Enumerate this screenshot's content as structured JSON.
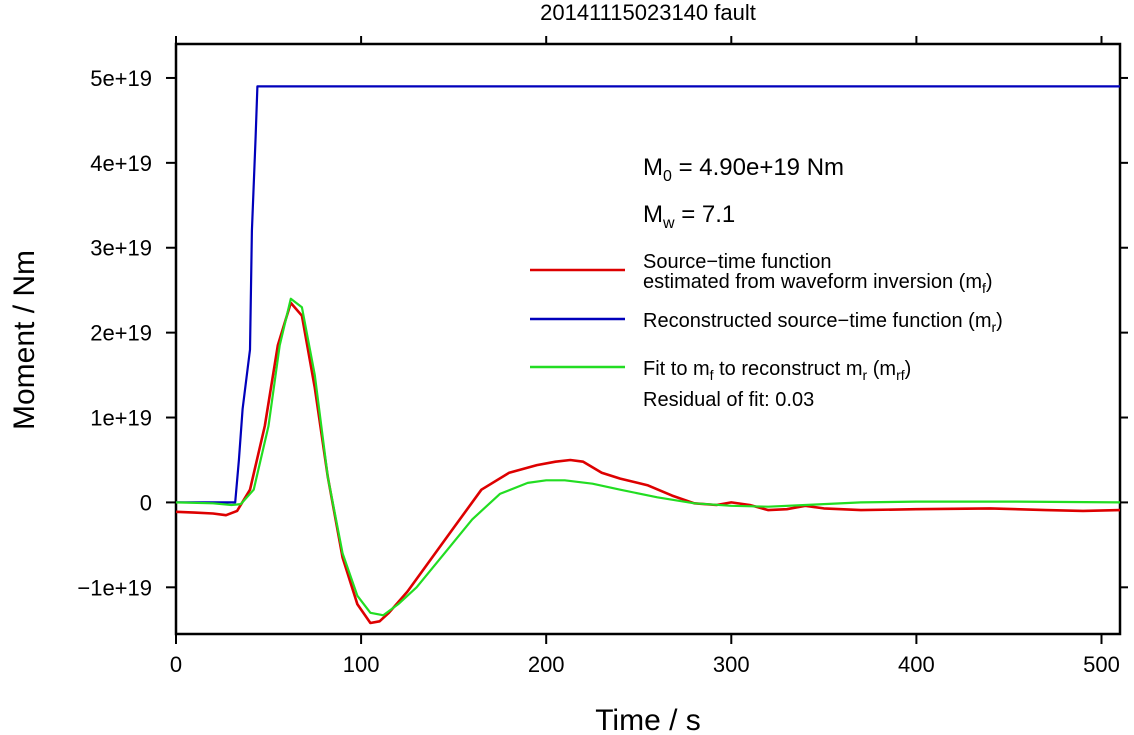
{
  "chart_data": {
    "type": "line",
    "title": "20141115023140 fault",
    "xlabel": "Time / s",
    "ylabel": "Moment / Nm",
    "xlim": [
      0,
      510
    ],
    "ylim": [
      -1.55e+19,
      5.4e+19
    ],
    "x_ticks": [
      0,
      100,
      200,
      300,
      400,
      500
    ],
    "x_tick_labels": [
      "0",
      "100",
      "200",
      "300",
      "400",
      "500"
    ],
    "y_ticks": [
      -1e+19,
      0,
      1e+19,
      2e+19,
      3e+19,
      4e+19,
      5e+19
    ],
    "y_tick_labels": [
      "−1e+19",
      "0",
      "1e+19",
      "2e+19",
      "3e+19",
      "4e+19",
      "5e+19"
    ],
    "grid": false,
    "legend_placement": "right",
    "annotations": {
      "m0": {
        "base": "M",
        "sub": "0",
        "rest": " = 4.90e+19 Nm"
      },
      "mw": {
        "base": "M",
        "sub": "w",
        "rest": " = 7.1"
      },
      "residual": "Residual of fit: 0.03"
    },
    "legend": [
      {
        "color": "#dd0000",
        "parts": [
          {
            "line1": "Source−time function"
          },
          {
            "t": "estimated from waveform inversion (m"
          },
          {
            "sub": "f"
          },
          {
            "t": ")"
          }
        ]
      },
      {
        "color": "#0000bb",
        "parts": [
          {
            "t": "Reconstructed source−time function (m"
          },
          {
            "sub": "r"
          },
          {
            "t": ")"
          }
        ]
      },
      {
        "color": "#22dd22",
        "parts": [
          {
            "t": "Fit to m"
          },
          {
            "sub": "f"
          },
          {
            "t": " to reconstruct m"
          },
          {
            "sub": "r"
          },
          {
            "t": " (m"
          },
          {
            "sub": "rf"
          },
          {
            "t": ")"
          }
        ]
      }
    ],
    "series": [
      {
        "color": "#dd0000",
        "x": [
          0,
          10,
          20,
          27,
          33,
          40,
          48,
          55,
          62,
          68,
          75,
          82,
          90,
          98,
          105,
          110,
          115,
          125,
          135,
          150,
          165,
          180,
          195,
          205,
          213,
          220,
          230,
          240,
          255,
          268,
          280,
          292,
          300,
          310,
          320,
          330,
          340,
          350,
          370,
          400,
          440,
          470,
          490,
          510
        ],
        "y": [
          -1.1e+18,
          -1.2e+18,
          -1.3e+18,
          -1.5e+18,
          -1e+18,
          1.5e+18,
          9e+18,
          1.85e+19,
          2.35e+19,
          2.2e+19,
          1.35e+19,
          3e+18,
          -6.5e+18,
          -1.2e+19,
          -1.42e+19,
          -1.4e+19,
          -1.3e+19,
          -1.05e+19,
          -7.5e+18,
          -3e+18,
          1.5e+18,
          3.5e+18,
          4.4e+18,
          4.8e+18,
          5e+18,
          4.8e+18,
          3.5e+18,
          2.8e+18,
          2e+18,
          8e+17,
          -1e+17,
          -3e+17,
          0,
          -3e+17,
          -9e+17,
          -8e+17,
          -4e+17,
          -7e+17,
          -9e+17,
          -8e+17,
          -7e+17,
          -9e+17,
          -1e+18,
          -9e+17
        ]
      },
      {
        "color": "#0000bb",
        "x": [
          0,
          32,
          34,
          36,
          40,
          41,
          43,
          44,
          510
        ],
        "y": [
          0,
          0,
          5e+18,
          1.1e+19,
          1.8e+19,
          3.2e+19,
          4.3e+19,
          4.9e+19,
          4.9e+19
        ]
      },
      {
        "color": "#22dd22",
        "x": [
          0,
          20,
          30,
          35,
          42,
          50,
          56,
          62,
          68,
          75,
          82,
          90,
          98,
          105,
          112,
          120,
          130,
          145,
          160,
          175,
          190,
          200,
          210,
          225,
          240,
          260,
          280,
          300,
          320,
          340,
          370,
          400,
          450,
          510
        ],
        "y": [
          0,
          -1e+17,
          -3e+17,
          -2e+17,
          1.5e+18,
          9e+18,
          1.85e+19,
          2.4e+19,
          2.3e+19,
          1.5e+19,
          3e+18,
          -6e+18,
          -1.1e+19,
          -1.3e+19,
          -1.33e+19,
          -1.2e+19,
          -1e+19,
          -6e+18,
          -2e+18,
          1e+18,
          2.3e+18,
          2.6e+18,
          2.6e+18,
          2.2e+18,
          1.5e+18,
          6e+17,
          -1e+17,
          -4e+17,
          -5e+17,
          -3e+17,
          0,
          1e+17,
          1e+17,
          0
        ]
      }
    ]
  }
}
